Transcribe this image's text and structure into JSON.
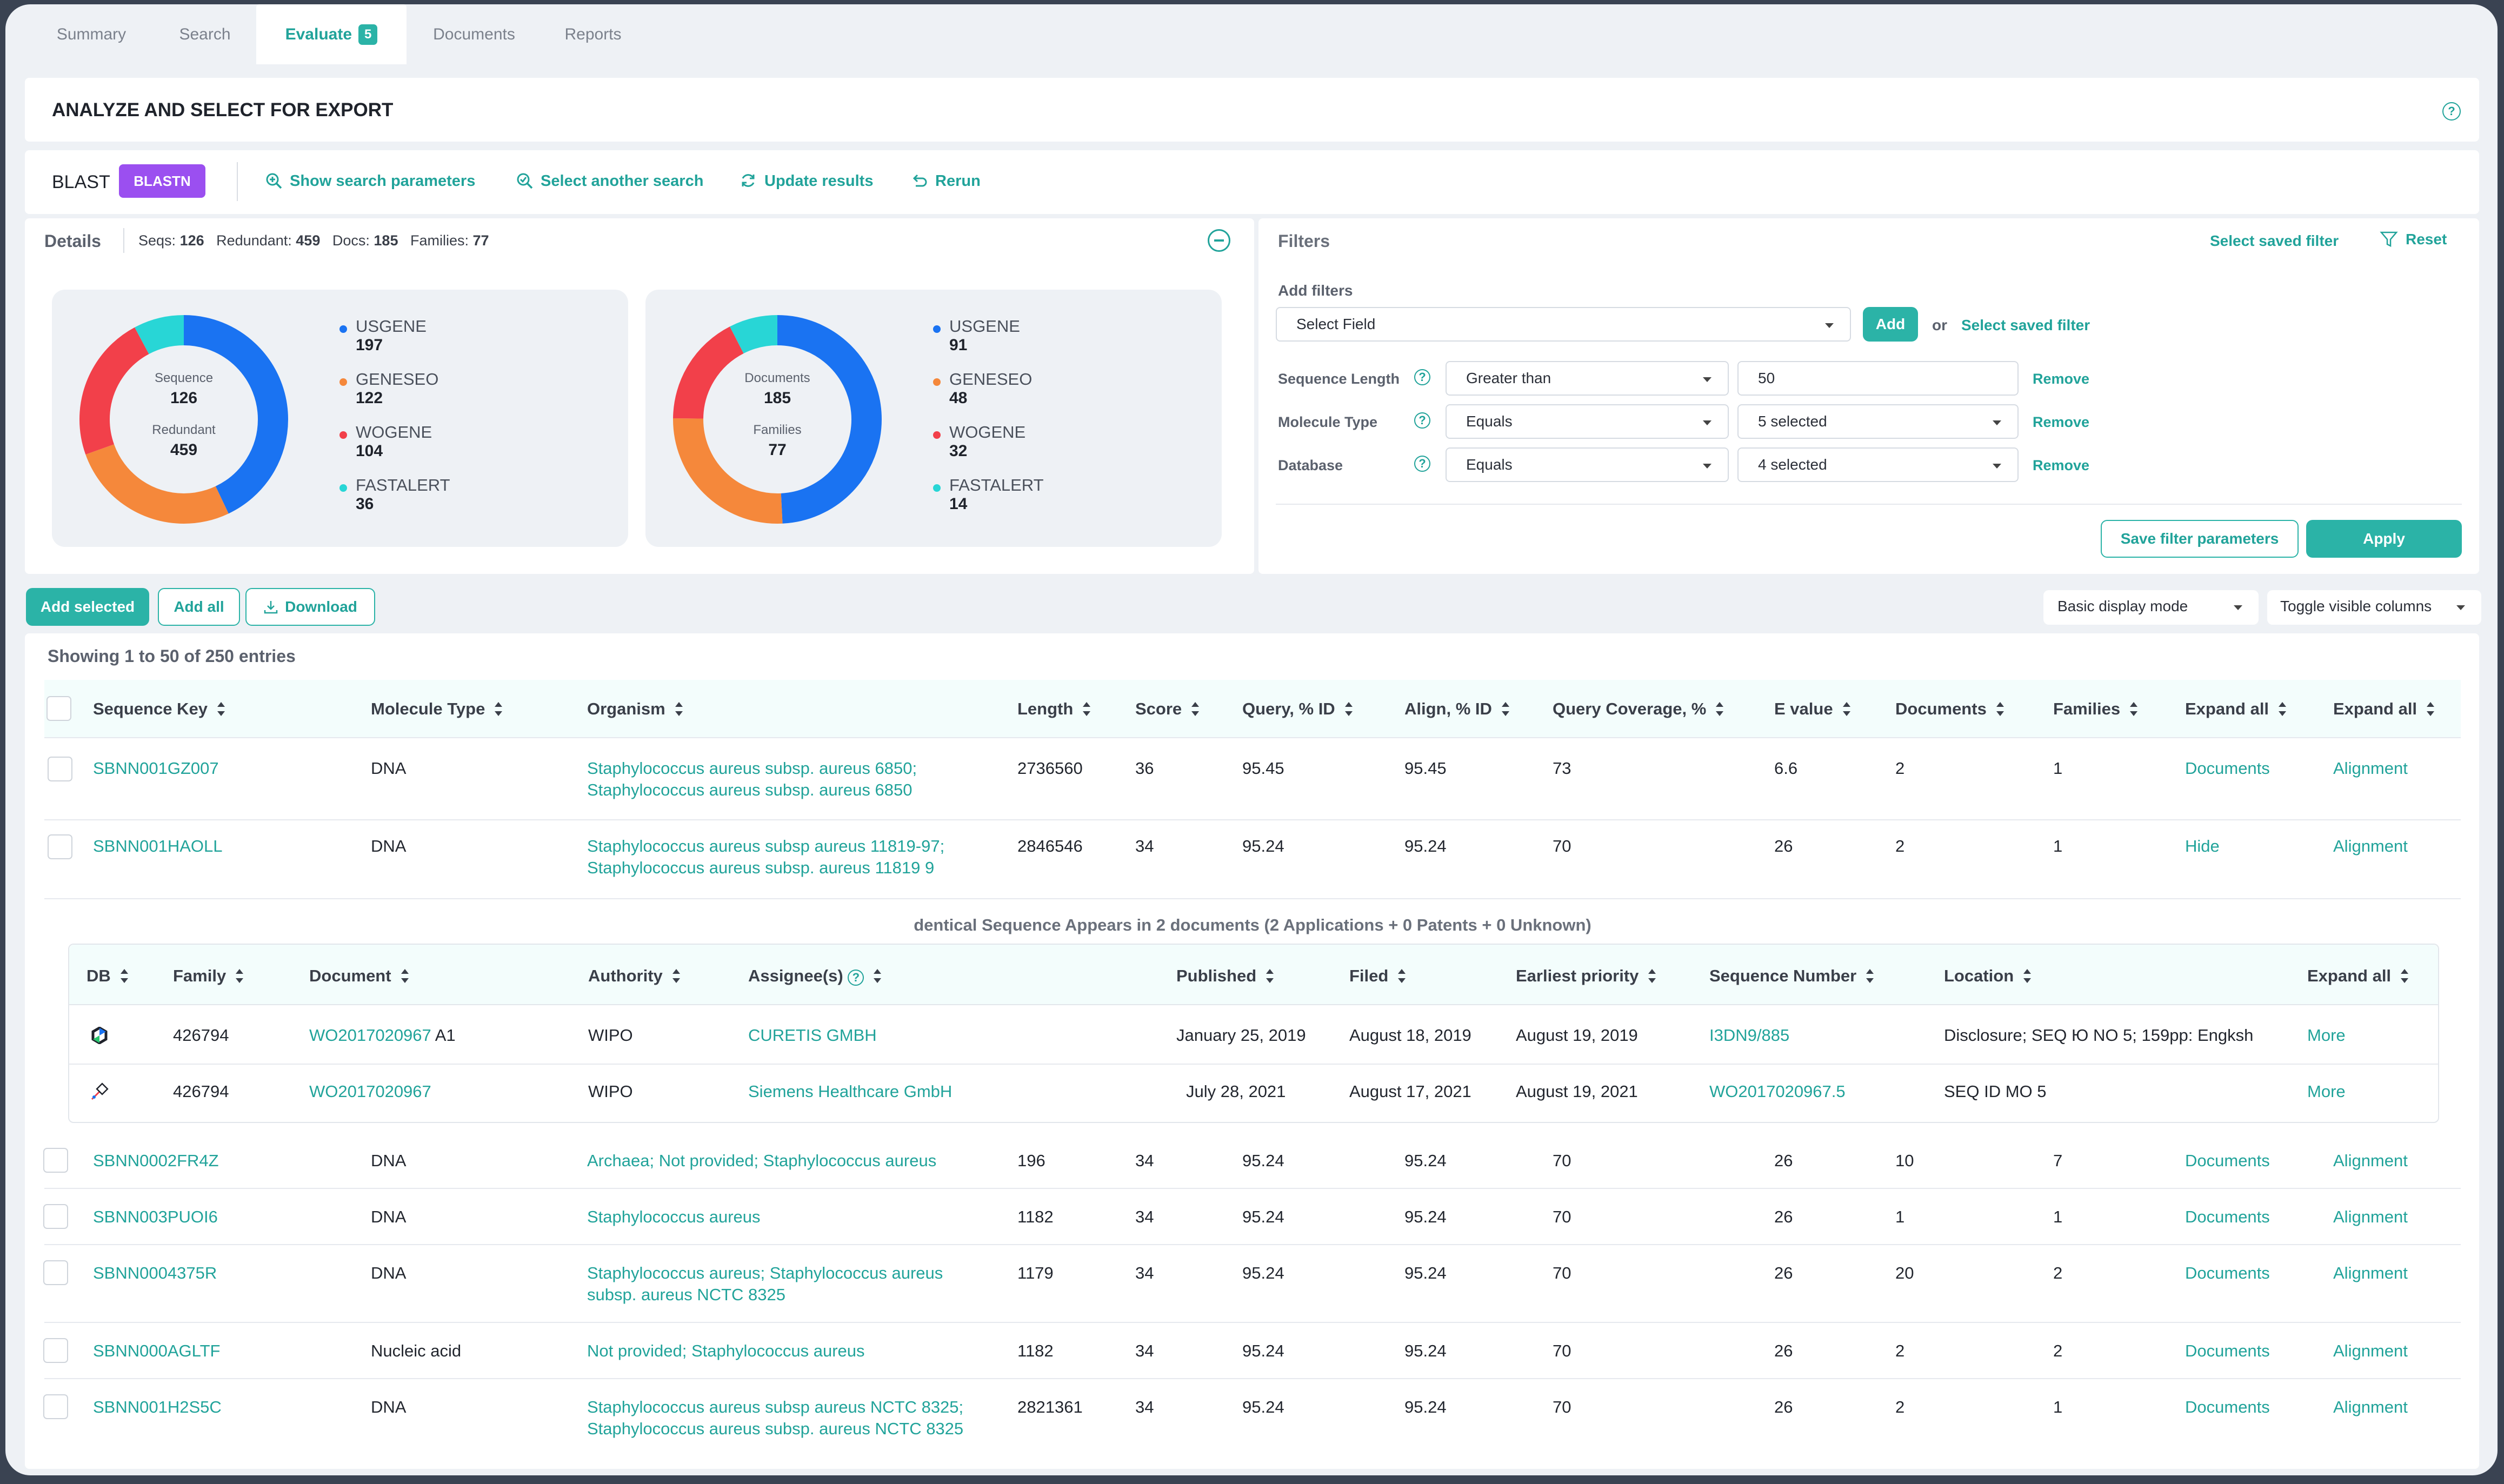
{
  "tabs": [
    {
      "label": "Summary"
    },
    {
      "label": "Search"
    },
    {
      "label": "Evaluate",
      "badge": "5"
    },
    {
      "label": "Documents"
    },
    {
      "label": "Reports"
    }
  ],
  "page_title": "ANALYZE AND SELECT FOR EXPORT",
  "toolbar": {
    "blast": "BLAST",
    "blastn": "BLASTN",
    "show_params": "Show search parameters",
    "select_another": "Select another search",
    "update": "Update results",
    "rerun": "Rerun"
  },
  "details": {
    "title": "Details",
    "seqs_label": "Seqs:",
    "seqs": "126",
    "redundant_label": "Redundant:",
    "redundant": "459",
    "docs_label": "Docs:",
    "docs": "185",
    "families_label": "Families:",
    "families": "77"
  },
  "donut1": {
    "top_label": "Sequence",
    "top_value": "126",
    "bottom_label": "Redundant",
    "bottom_value": "459",
    "legend": [
      {
        "name": "USGENE",
        "value": "197",
        "color": "#1a73f2"
      },
      {
        "name": "GENESEO",
        "value": "122",
        "color": "#f5883b"
      },
      {
        "name": "WOGENE",
        "value": "104",
        "color": "#f2404a"
      },
      {
        "name": "FASTALERT",
        "value": "36",
        "color": "#28d6d6"
      }
    ]
  },
  "donut2": {
    "top_label": "Documents",
    "top_value": "185",
    "bottom_label": "Families",
    "bottom_value": "77",
    "legend": [
      {
        "name": "USGENE",
        "value": "91",
        "color": "#1a73f2"
      },
      {
        "name": "GENESEO",
        "value": "48",
        "color": "#f5883b"
      },
      {
        "name": "WOGENE",
        "value": "32",
        "color": "#f2404a"
      },
      {
        "name": "FASTALERT",
        "value": "14",
        "color": "#28d6d6"
      }
    ]
  },
  "filters": {
    "title": "Filters",
    "select_saved": "Select saved filter",
    "reset": "Reset",
    "add_filters": "Add filters",
    "select_field": "Select Field",
    "add": "Add",
    "or": "or",
    "select_saved2": "Select saved filter",
    "rows": [
      {
        "label": "Sequence Length",
        "op": "Greater than",
        "value": "50",
        "remove": "Remove"
      },
      {
        "label": "Molecule Type",
        "op": "Equals",
        "value": "5 selected",
        "remove": "Remove"
      },
      {
        "label": "Database",
        "op": "Equals",
        "value": "4 selected",
        "remove": "Remove"
      }
    ],
    "save": "Save filter parameters",
    "apply": "Apply"
  },
  "actions": {
    "add_selected": "Add selected",
    "add_all": "Add all",
    "download": "Download",
    "display_mode": "Basic display mode",
    "toggle_cols": "Toggle visible columns"
  },
  "showing": "Showing 1 to 50 of 250 entries",
  "columns": [
    "Sequence Key",
    "Molecule Type",
    "Organism",
    "Length",
    "Score",
    "Query, % ID",
    "Align, % ID",
    "Query Coverage, %",
    "E value",
    "Documents",
    "Families",
    "Expand all",
    "Expand all"
  ],
  "rows": [
    {
      "key": "SBNN001GZ007",
      "type": "DNA",
      "org1": "Staphylococcus aureus subsp. aureus 6850;",
      "org2": "Staphylococcus aureus subsp. aureus 6850",
      "length": "2736560",
      "score": "36",
      "query": "95.45",
      "align": "95.45",
      "cov": "73",
      "e": "6.6",
      "docs": "2",
      "fam": "1",
      "c1": "Documents",
      "c2": "Alignment"
    },
    {
      "key": "SBNN001HAOLL",
      "type": "DNA",
      "org1": "Staphylococcus aureus subsp aureus 11819-97;",
      "org2": "Staphylococcus aureus subsp. aureus 11819 9",
      "length": "2846546",
      "score": "34",
      "query": "95.24",
      "align": "95.24",
      "cov": "70",
      "e": "26",
      "docs": "2",
      "fam": "1",
      "c1": "Hide",
      "c2": "Alignment"
    },
    {
      "key": "SBNN0002FR4Z",
      "type": "DNA",
      "org1": "Archaea; Not provided; Staphylococcus aureus",
      "org2": "",
      "length": "196",
      "score": "34",
      "query": "95.24",
      "align": "95.24",
      "cov": "70",
      "e": "26",
      "docs": "10",
      "fam": "7",
      "c1": "Documents",
      "c2": "Alignment"
    },
    {
      "key": "SBNN003PUOI6",
      "type": "DNA",
      "org1": "Staphylococcus aureus",
      "org2": "",
      "length": "1182",
      "score": "34",
      "query": "95.24",
      "align": "95.24",
      "cov": "70",
      "e": "26",
      "docs": "1",
      "fam": "1",
      "c1": "Documents",
      "c2": "Alignment"
    },
    {
      "key": "SBNN0004375R",
      "type": "DNA",
      "org1": "Staphylococcus aureus; Staphylococcus aureus",
      "org2": "subsp. aureus NCTC 8325",
      "length": "1179",
      "score": "34",
      "query": "95.24",
      "align": "95.24",
      "cov": "70",
      "e": "26",
      "docs": "20",
      "fam": "2",
      "c1": "Documents",
      "c2": "Alignment"
    },
    {
      "key": "SBNN000AGLTF",
      "type": "Nucleic acid",
      "org1": "Not provided; Staphylococcus aureus",
      "org2": "",
      "length": "1182",
      "score": "34",
      "query": "95.24",
      "align": "95.24",
      "cov": "70",
      "e": "26",
      "docs": "2",
      "fam": "2",
      "c1": "Documents",
      "c2": "Alignment"
    },
    {
      "key": "SBNN001H2S5C",
      "type": "DNA",
      "org1": "Staphylococcus aureus subsp aureus NCTC 8325;",
      "org2": "Staphylococcus aureus subsp. aureus NCTC 8325",
      "length": "2821361",
      "score": "34",
      "query": "95.24",
      "align": "95.24",
      "cov": "70",
      "e": "26",
      "docs": "2",
      "fam": "1",
      "c1": "Documents",
      "c2": "Alignment"
    }
  ],
  "sub": {
    "caption": "dentical Sequence Appears in 2 documents (2 Applications + 0 Patents + 0 Unknown)",
    "columns": [
      "DB",
      "Family",
      "Document",
      "Authority",
      "Assignee(s)",
      "Published",
      "Filed",
      "Earliest priority",
      "Sequence Number",
      "Location",
      "Expand all"
    ],
    "rows": [
      {
        "family": "426794",
        "doc": "WO2017020967",
        "doc_suffix": "A1",
        "authority": "WIPO",
        "assignee": "CURETIS GMBH",
        "published": "January 25, 2019",
        "filed": "August 18, 2019",
        "priority": "August 19, 2019",
        "seqnum": "I3DN9/885",
        "location": "Disclosure; SEQ Ю NO 5; 159pp: Engksh",
        "more": "More"
      },
      {
        "family": "426794",
        "doc": "WO2017020967",
        "doc_suffix": "",
        "authority": "WIPO",
        "assignee": "Siemens Healthcare GmbH",
        "published": "July 28, 2021",
        "filed": "August 17, 2021",
        "priority": "August 19, 2021",
        "seqnum": "WO2017020967.5",
        "location": "SEQ ID MO 5",
        "more": "More"
      }
    ]
  }
}
